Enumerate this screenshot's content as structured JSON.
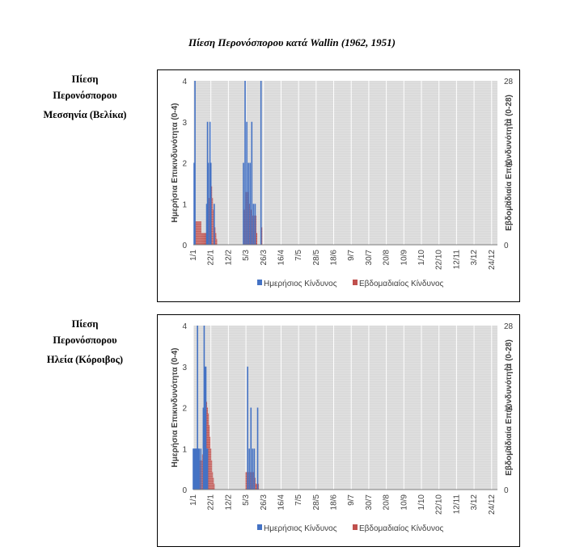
{
  "page": {
    "title": "Πίεση Περονόσπορου κατά Wallin (1962, 1951)"
  },
  "sections": [
    {
      "label_lines": [
        "Πίεση",
        "Περονόσπορου",
        "Μεσσηνία (Βελίκα)"
      ]
    },
    {
      "label_lines": [
        "Πίεση",
        "Περονόσπορου",
        "Ηλεία (Κόροιβος)"
      ]
    }
  ],
  "chart_data": [
    {
      "type": "bar",
      "title": "",
      "xlabel": "",
      "ylabel": "Ημερήσια Επικινδυνότητα (0-4)",
      "y2label": "Εβδομαδιαία Επικινδυνότητα (0-28)",
      "ylim": [
        0,
        4
      ],
      "y2lim": [
        0,
        28
      ],
      "yticks": [
        "0",
        "1",
        "2",
        "3",
        "4"
      ],
      "y2ticks": [
        "0",
        "7",
        "14",
        "21",
        "28"
      ],
      "x_tick_labels": [
        "1/1",
        "22/1",
        "12/2",
        "5/3",
        "26/3",
        "16/4",
        "7/5",
        "28/5",
        "18/6",
        "9/7",
        "30/7",
        "20/8",
        "10/9",
        "1/10",
        "22/10",
        "12/11",
        "3/12",
        "24/12"
      ],
      "x_range_days": [
        1,
        365
      ],
      "grid": true,
      "plot_background": "#D9D9D9",
      "legend_position": "bottom",
      "series": [
        {
          "name": "Ημερήσιος Κίνδυνος",
          "axis": "left",
          "color": "#4472C4",
          "points": [
            [
              "2/1",
              2
            ],
            [
              "3/1",
              4
            ],
            [
              "17/1",
              1
            ],
            [
              "18/1",
              3
            ],
            [
              "19/1",
              2
            ],
            [
              "21/1",
              3
            ],
            [
              "22/1",
              2
            ],
            [
              "26/1",
              1
            ],
            [
              "2/3",
              2
            ],
            [
              "4/3",
              4
            ],
            [
              "6/3",
              3
            ],
            [
              "8/3",
              2
            ],
            [
              "10/3",
              2
            ],
            [
              "12/3",
              3
            ],
            [
              "14/3",
              1
            ],
            [
              "16/3",
              1
            ],
            [
              "23/3",
              4
            ]
          ]
        },
        {
          "name": "Εβδομαδιαίος Κίνδυνος",
          "axis": "right",
          "color": "#C0504D",
          "points": [
            [
              "4/1",
              4
            ],
            [
              "5/1",
              4
            ],
            [
              "6/1",
              4
            ],
            [
              "7/1",
              4
            ],
            [
              "8/1",
              4
            ],
            [
              "9/1",
              4
            ],
            [
              "10/1",
              4
            ],
            [
              "11/1",
              2
            ],
            [
              "12/1",
              2
            ],
            [
              "13/1",
              2
            ],
            [
              "14/1",
              2
            ],
            [
              "15/1",
              2
            ],
            [
              "16/1",
              2
            ],
            [
              "17/1",
              2
            ],
            [
              "18/1",
              5
            ],
            [
              "19/1",
              7
            ],
            [
              "20/1",
              8
            ],
            [
              "21/1",
              10
            ],
            [
              "22/1",
              11
            ],
            [
              "23/1",
              10
            ],
            [
              "24/1",
              8
            ],
            [
              "25/1",
              6
            ],
            [
              "26/1",
              6
            ],
            [
              "27/1",
              3
            ],
            [
              "28/1",
              2
            ],
            [
              "29/1",
              1
            ],
            [
              "2/3",
              2
            ],
            [
              "3/3",
              6
            ],
            [
              "4/3",
              8
            ],
            [
              "5/3",
              9
            ],
            [
              "6/3",
              9
            ],
            [
              "7/3",
              9
            ],
            [
              "8/3",
              8
            ],
            [
              "9/3",
              7
            ],
            [
              "10/3",
              7
            ],
            [
              "11/3",
              6
            ],
            [
              "12/3",
              5
            ],
            [
              "13/3",
              5
            ],
            [
              "14/3",
              5
            ],
            [
              "15/3",
              5
            ],
            [
              "16/3",
              5
            ],
            [
              "17/3",
              5
            ],
            [
              "18/3",
              2
            ],
            [
              "24/3",
              3
            ]
          ]
        }
      ]
    },
    {
      "type": "bar",
      "title": "",
      "xlabel": "",
      "ylabel": "Ημερήσια Επικινδυνότητα (0-4)",
      "y2label": "Εβδομαδιαία Επικινδυνότητα (0-28)",
      "ylim": [
        0,
        4
      ],
      "y2lim": [
        0,
        28
      ],
      "yticks": [
        "0",
        "1",
        "2",
        "3",
        "4"
      ],
      "y2ticks": [
        "0",
        "7",
        "14",
        "21",
        "28"
      ],
      "x_tick_labels": [
        "1/1",
        "22/1",
        "12/2",
        "5/3",
        "26/3",
        "16/4",
        "7/5",
        "28/5",
        "18/6",
        "9/7",
        "30/7",
        "20/8",
        "10/9",
        "1/10",
        "22/10",
        "12/11",
        "3/12",
        "24/12"
      ],
      "x_range_days": [
        1,
        365
      ],
      "grid": true,
      "plot_background": "#D9D9D9",
      "legend_position": "bottom",
      "series": [
        {
          "name": "Ημερήσιος Κίνδυνος",
          "axis": "left",
          "color": "#4472C4",
          "points": [
            [
              "1/1",
              1
            ],
            [
              "2/1",
              1
            ],
            [
              "3/1",
              1
            ],
            [
              "4/1",
              1
            ],
            [
              "5/1",
              1
            ],
            [
              "6/1",
              4
            ],
            [
              "7/1",
              1
            ],
            [
              "8/1",
              1
            ],
            [
              "10/1",
              1
            ],
            [
              "13/1",
              2
            ],
            [
              "14/1",
              4
            ],
            [
              "15/1",
              3
            ],
            [
              "16/1",
              3
            ],
            [
              "17/1",
              1
            ],
            [
              "18/1",
              1
            ],
            [
              "7/3",
              3
            ],
            [
              "9/3",
              1
            ],
            [
              "11/3",
              2
            ],
            [
              "13/3",
              1
            ],
            [
              "15/3",
              1
            ],
            [
              "19/3",
              2
            ]
          ]
        },
        {
          "name": "Εβδομαδιαίος Κίνδυνος",
          "axis": "right",
          "color": "#C0504D",
          "points": [
            [
              "1/1",
              3
            ],
            [
              "2/1",
              5
            ],
            [
              "3/1",
              6
            ],
            [
              "4/1",
              7
            ],
            [
              "5/1",
              7
            ],
            [
              "6/1",
              7
            ],
            [
              "7/1",
              6
            ],
            [
              "8/1",
              5
            ],
            [
              "9/1",
              5
            ],
            [
              "10/1",
              4
            ],
            [
              "11/1",
              5
            ],
            [
              "12/1",
              6
            ],
            [
              "13/1",
              8
            ],
            [
              "14/1",
              10
            ],
            [
              "15/1",
              12
            ],
            [
              "16/1",
              14
            ],
            [
              "17/1",
              15
            ],
            [
              "18/1",
              14
            ],
            [
              "19/1",
              13
            ],
            [
              "20/1",
              11
            ],
            [
              "21/1",
              9
            ],
            [
              "22/1",
              7
            ],
            [
              "23/1",
              5
            ],
            [
              "24/1",
              3
            ],
            [
              "25/1",
              2
            ],
            [
              "26/1",
              1
            ],
            [
              "5/3",
              3
            ],
            [
              "6/3",
              3
            ],
            [
              "7/3",
              3
            ],
            [
              "8/3",
              3
            ],
            [
              "9/3",
              3
            ],
            [
              "10/3",
              3
            ],
            [
              "11/3",
              3
            ],
            [
              "12/3",
              3
            ],
            [
              "13/3",
              3
            ],
            [
              "14/3",
              3
            ],
            [
              "15/3",
              3
            ],
            [
              "16/3",
              2
            ],
            [
              "17/3",
              1
            ],
            [
              "18/3",
              1
            ],
            [
              "20/3",
              1
            ]
          ]
        }
      ]
    }
  ]
}
